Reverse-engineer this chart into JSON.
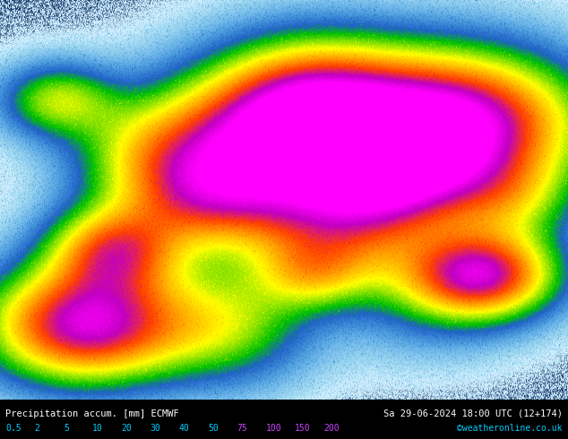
{
  "title_left": "Precipitation accum. [mm] ECMWF",
  "title_right": "Sa 29-06-2024 18:00 UTC (12+174)",
  "credit": "©weatheronline.co.uk",
  "colorbar_values": [
    0.5,
    2,
    5,
    10,
    20,
    30,
    40,
    50,
    75,
    100,
    150,
    200
  ],
  "colorbar_colors": [
    "#d4f0ff",
    "#a0d8f0",
    "#6ab4e8",
    "#4090d8",
    "#2060c8",
    "#00c000",
    "#80e000",
    "#ffff00",
    "#ffa000",
    "#ff4000",
    "#c000c0",
    "#ff00ff"
  ],
  "bg_color": "#1a3a6b",
  "fig_width": 6.34,
  "fig_height": 4.9,
  "dpi": 100,
  "bottom_bar_color": "#000000",
  "bottom_text_color_left": "#00ccff",
  "bottom_title_color": "#ffffff",
  "bottom_right_color": "#00ccff"
}
